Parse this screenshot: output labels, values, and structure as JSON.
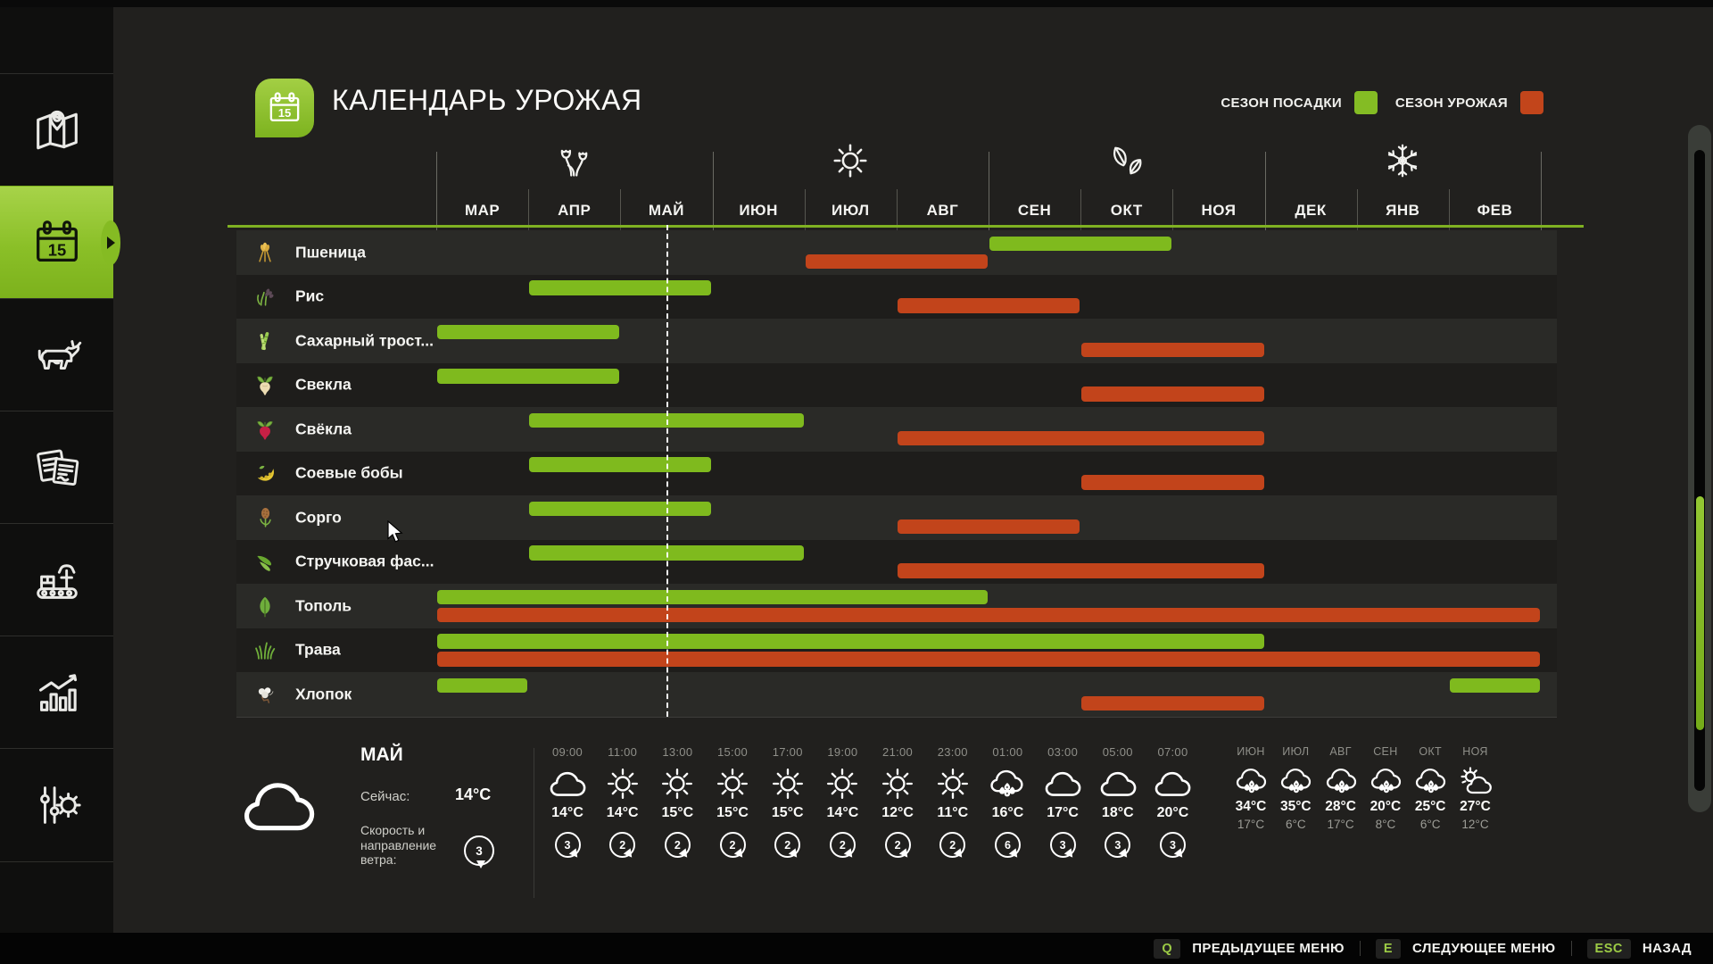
{
  "header": {
    "title": "КАЛЕНДАРЬ УРОЖАЯ",
    "legend": [
      {
        "label": "СЕЗОН ПОСАДКИ",
        "color": "#84bc24"
      },
      {
        "label": "СЕЗОН УРОЖАЯ",
        "color": "#c2451b"
      }
    ]
  },
  "sidebar": {
    "calendar_day": "15",
    "active_item": "harvest-calendar",
    "items": [
      {
        "id": "map",
        "icon": "map-icon"
      },
      {
        "id": "harvest-calendar",
        "icon": "calendar-icon"
      },
      {
        "id": "animals",
        "icon": "cow-icon"
      },
      {
        "id": "contracts",
        "icon": "documents-icon"
      },
      {
        "id": "production",
        "icon": "production-icon"
      },
      {
        "id": "statistics",
        "icon": "statistics-icon"
      },
      {
        "id": "settings",
        "icon": "settings-icon"
      }
    ]
  },
  "calendar": {
    "months": [
      "МАР",
      "АПР",
      "МАЙ",
      "ИЮН",
      "ИЮЛ",
      "АВГ",
      "СЕН",
      "ОКТ",
      "НОЯ",
      "ДЕК",
      "ЯНВ",
      "ФЕВ"
    ],
    "seasons": [
      {
        "name": "spring",
        "icon": "flowers-icon"
      },
      {
        "name": "summer",
        "icon": "sun-icon"
      },
      {
        "name": "autumn",
        "icon": "leaves-icon"
      },
      {
        "name": "winter",
        "icon": "snowflake-icon"
      }
    ],
    "colors": {
      "planting": "#7fba1e",
      "harvest": "#c2441b"
    },
    "today_marker": {
      "month_index": 2,
      "fraction": 0.5
    },
    "crops": [
      {
        "name": "Пшеница",
        "icon": "wheat-icon",
        "planting": [
          [
            6,
            8
          ]
        ],
        "harvest": [
          [
            4,
            6
          ]
        ]
      },
      {
        "name": "Рис",
        "icon": "rice-icon",
        "planting": [
          [
            1,
            3
          ]
        ],
        "harvest": [
          [
            5,
            7
          ]
        ]
      },
      {
        "name": "Сахарный трост...",
        "icon": "sugarcane-icon",
        "planting": [
          [
            0,
            2
          ]
        ],
        "harvest": [
          [
            7,
            9
          ]
        ]
      },
      {
        "name": "Свекла",
        "icon": "sugarbeet-icon",
        "planting": [
          [
            0,
            2
          ]
        ],
        "harvest": [
          [
            7,
            9
          ]
        ]
      },
      {
        "name": "Свёкла",
        "icon": "redbeet-icon",
        "planting": [
          [
            1,
            4
          ]
        ],
        "harvest": [
          [
            5,
            9
          ]
        ]
      },
      {
        "name": "Соевые бобы",
        "icon": "soybean-icon",
        "planting": [
          [
            1,
            3
          ]
        ],
        "harvest": [
          [
            7,
            9
          ]
        ]
      },
      {
        "name": "Сорго",
        "icon": "sorghum-icon",
        "planting": [
          [
            1,
            3
          ]
        ],
        "harvest": [
          [
            5,
            7
          ]
        ]
      },
      {
        "name": "Стручковая фас...",
        "icon": "beans-icon",
        "planting": [
          [
            1,
            4
          ]
        ],
        "harvest": [
          [
            5,
            9
          ]
        ]
      },
      {
        "name": "Тополь",
        "icon": "poplar-icon",
        "planting": [
          [
            0,
            6
          ]
        ],
        "harvest": [
          [
            0,
            12
          ]
        ]
      },
      {
        "name": "Трава",
        "icon": "grass-icon",
        "planting": [
          [
            0,
            9
          ]
        ],
        "harvest": [
          [
            0,
            12
          ]
        ]
      },
      {
        "name": "Хлопок",
        "icon": "cotton-icon",
        "planting": [
          [
            0,
            1
          ],
          [
            11,
            12
          ]
        ],
        "harvest": [
          [
            7,
            9
          ]
        ]
      }
    ]
  },
  "weather": {
    "current": {
      "month": "МАЙ",
      "icon": "cloud-icon",
      "now_label": "Сейчас:",
      "now_temp": "14°C",
      "wind_label": "Скорость и направление ветра:",
      "wind_value": "3"
    },
    "hourly": [
      {
        "time": "09:00",
        "icon": "cloud-icon",
        "temp": "14°C",
        "wind": "3"
      },
      {
        "time": "11:00",
        "icon": "sun-icon",
        "temp": "14°C",
        "wind": "2"
      },
      {
        "time": "13:00",
        "icon": "sun-icon",
        "temp": "15°C",
        "wind": "2"
      },
      {
        "time": "15:00",
        "icon": "sun-icon",
        "temp": "15°C",
        "wind": "2"
      },
      {
        "time": "17:00",
        "icon": "sun-icon",
        "temp": "15°C",
        "wind": "2"
      },
      {
        "time": "19:00",
        "icon": "sun-icon",
        "temp": "14°C",
        "wind": "2"
      },
      {
        "time": "21:00",
        "icon": "sun-icon",
        "temp": "12°C",
        "wind": "2"
      },
      {
        "time": "23:00",
        "icon": "sun-icon",
        "temp": "11°C",
        "wind": "2"
      },
      {
        "time": "01:00",
        "icon": "rain-icon",
        "temp": "16°C",
        "wind": "6"
      },
      {
        "time": "03:00",
        "icon": "cloud-icon",
        "temp": "17°C",
        "wind": "3"
      },
      {
        "time": "05:00",
        "icon": "cloud-icon",
        "temp": "18°C",
        "wind": "3"
      },
      {
        "time": "07:00",
        "icon": "cloud-icon",
        "temp": "20°C",
        "wind": "3"
      }
    ],
    "monthly": [
      {
        "month": "ИЮН",
        "icon": "rain-icon",
        "temp_max": "34°C",
        "temp_min": "17°C"
      },
      {
        "month": "ИЮЛ",
        "icon": "rain-icon",
        "temp_max": "35°C",
        "temp_min": "6°C"
      },
      {
        "month": "АВГ",
        "icon": "rain-icon",
        "temp_max": "28°C",
        "temp_min": "17°C"
      },
      {
        "month": "СЕН",
        "icon": "rain-icon",
        "temp_max": "20°C",
        "temp_min": "8°C"
      },
      {
        "month": "ОКТ",
        "icon": "rain-icon",
        "temp_max": "25°C",
        "temp_min": "6°C"
      },
      {
        "month": "НОЯ",
        "icon": "partly-sunny-icon",
        "temp_max": "27°C",
        "temp_min": "12°C"
      }
    ]
  },
  "footer": {
    "shortcuts": [
      {
        "key": "Q",
        "label": "ПРЕДЫДУЩЕЕ МЕНЮ"
      },
      {
        "key": "E",
        "label": "СЛЕДУЮЩЕЕ МЕНЮ"
      },
      {
        "key": "ESC",
        "label": "НАЗАД"
      }
    ]
  }
}
